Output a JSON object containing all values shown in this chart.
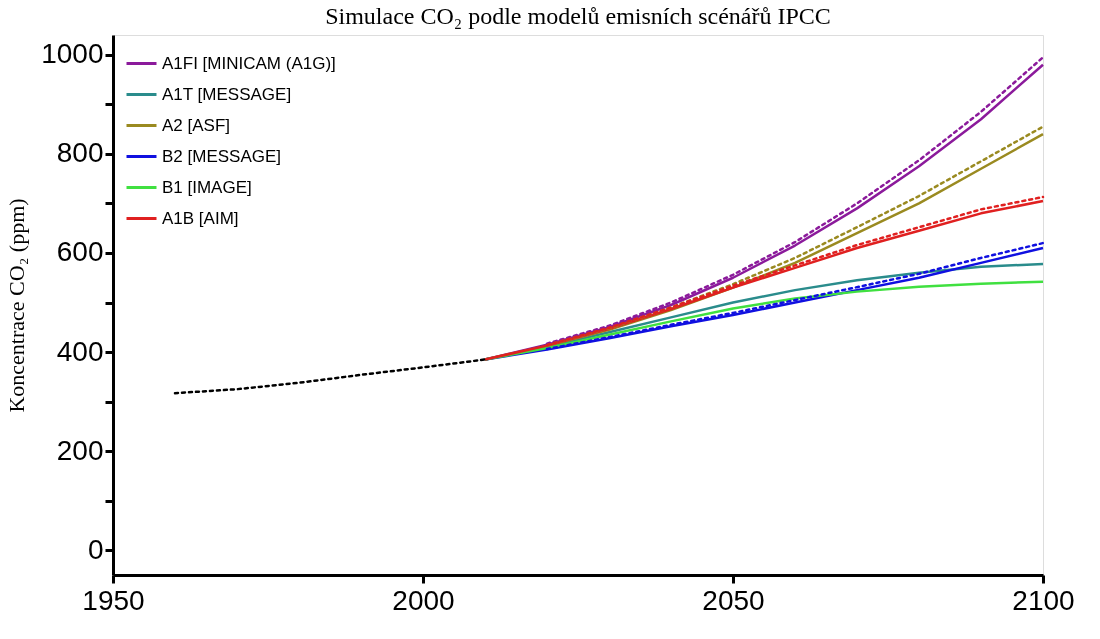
{
  "chart_data": {
    "type": "line",
    "title": "Simulace CO₂ podle modelů emisních scénářů IPCC",
    "ylabel": "Koncentrace CO₂ (ppm)",
    "x": [
      2010,
      2020,
      2030,
      2040,
      2050,
      2060,
      2070,
      2080,
      2090,
      2100
    ],
    "xlim": [
      1950,
      2100
    ],
    "xticks": [
      1950,
      2000,
      2050,
      2100
    ],
    "ylim": [
      -50,
      1040
    ],
    "yticks": [
      0,
      {
        "value": 100,
        "label": null
      },
      200,
      {
        "value": 300,
        "label": null
      },
      400,
      {
        "value": 500,
        "label": null
      },
      600,
      {
        "value": 700,
        "label": null
      },
      800,
      {
        "value": 900,
        "label": null
      },
      1000
    ],
    "grid": false,
    "legend": "top left",
    "marker": "none",
    "series": [
      {
        "name": "A1FI [MINICAM (A1G)]",
        "color": "#8b1a9b",
        "line_style": "solid",
        "values": [
          385,
          415,
          450,
          495,
          550,
          615,
          690,
          775,
          870,
          980
        ]
      },
      {
        "name": "A1T [MESSAGE]",
        "color": "#2a8c8c",
        "line_style": "solid",
        "values": [
          385,
          410,
          440,
          470,
          500,
          525,
          545,
          560,
          572,
          578
        ]
      },
      {
        "name": "A2 [ASF]",
        "color": "#9a8a20",
        "line_style": "solid",
        "values": [
          385,
          412,
          445,
          485,
          530,
          580,
          640,
          700,
          770,
          840
        ]
      },
      {
        "name": "B2 [MESSAGE]",
        "color": "#1010e0",
        "line_style": "solid",
        "values": [
          385,
          405,
          428,
          452,
          475,
          500,
          525,
          550,
          580,
          610
        ]
      },
      {
        "name": "B1 [IMAGE]",
        "color": "#40e040",
        "line_style": "solid",
        "values": [
          385,
          408,
          435,
          462,
          488,
          508,
          522,
          532,
          538,
          542
        ]
      },
      {
        "name": "A1B [AIM]",
        "color": "#e02020",
        "line_style": "solid",
        "values": [
          385,
          413,
          447,
          487,
          530,
          570,
          610,
          645,
          680,
          705
        ]
      },
      {
        "color": "#8b1a9b",
        "line_style": "dashed",
        "x": [
          2020,
          2030,
          2040,
          2050,
          2060,
          2070,
          2080,
          2090,
          2100
        ],
        "values": [
          417,
          453,
          500,
          556,
          622,
          700,
          787,
          885,
          995
        ]
      },
      {
        "color": "#9a8a20",
        "line_style": "dashed",
        "x": [
          2020,
          2030,
          2040,
          2050,
          2060,
          2070,
          2080,
          2090,
          2100
        ],
        "values": [
          414,
          448,
          490,
          537,
          590,
          652,
          715,
          785,
          855
        ]
      },
      {
        "color": "#1010e0",
        "line_style": "dashed",
        "x": [
          2020,
          2030,
          2040,
          2050,
          2060,
          2070,
          2080,
          2090,
          2100
        ],
        "values": [
          406,
          430,
          455,
          479,
          505,
          531,
          558,
          590,
          620
        ]
      },
      {
        "color": "#e02020",
        "line_style": "dashed",
        "x": [
          2020,
          2030,
          2040,
          2050,
          2060,
          2070,
          2080,
          2090,
          2100
        ],
        "values": [
          414,
          449,
          490,
          534,
          575,
          616,
          652,
          688,
          713
        ]
      },
      {
        "color": "#000000",
        "line_style": "dashed",
        "x": [
          1960,
          1970,
          1980,
          1990,
          2000,
          2010
        ],
        "values": [
          317,
          325,
          338,
          354,
          369,
          385
        ]
      }
    ]
  }
}
